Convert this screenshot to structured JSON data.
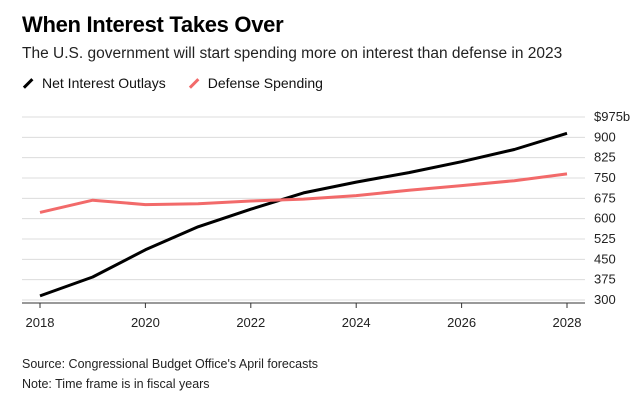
{
  "title": "When Interest Takes Over",
  "subtitle": "The U.S. government will start spending more on interest than defense in 2023",
  "source": "Source: Congressional Budget Office's April forecasts",
  "note": "Note: Time frame is in fiscal years",
  "chart_data": {
    "type": "line",
    "x": [
      2018,
      2019,
      2020,
      2021,
      2022,
      2023,
      2024,
      2025,
      2026,
      2027,
      2028
    ],
    "xticks": [
      2018,
      2020,
      2022,
      2024,
      2026,
      2028
    ],
    "xtick_labels": [
      "2018",
      "2020",
      "2022",
      "2024",
      "2026",
      "2028"
    ],
    "yticks": [
      300,
      375,
      450,
      525,
      600,
      675,
      750,
      825,
      900,
      975
    ],
    "ytick_labels": [
      "300",
      "375",
      "450",
      "525",
      "600",
      "675",
      "750",
      "825",
      "900",
      "$975b"
    ],
    "xlim": [
      2018,
      2028
    ],
    "ylim": [
      300,
      975
    ],
    "grid": "horizontal",
    "legend_position": "top-left",
    "series": [
      {
        "name": "Net Interest Outlays",
        "color": "#000000",
        "values": [
          315,
          385,
          485,
          570,
          635,
          695,
          735,
          770,
          810,
          855,
          915
        ]
      },
      {
        "name": "Defense Spending",
        "color": "#f26a6a",
        "values": [
          623,
          668,
          652,
          655,
          665,
          672,
          685,
          705,
          722,
          740,
          765
        ]
      }
    ]
  }
}
